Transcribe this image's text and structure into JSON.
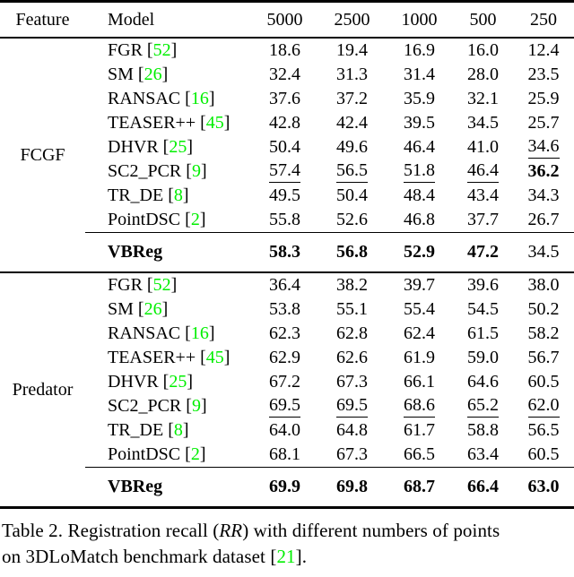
{
  "colors": {
    "citation_green": "#00ef00",
    "text": "#000000",
    "rules": "#000000"
  },
  "table": {
    "columns": [
      "Feature",
      "Model",
      "5000",
      "2500",
      "1000",
      "500",
      "250"
    ],
    "cite_open": "[",
    "cite_close": "]",
    "sections": [
      {
        "feature": "FCGF",
        "rows": [
          {
            "model": "FGR",
            "cite": "52",
            "values": [
              {
                "v": "18.6"
              },
              {
                "v": "19.4"
              },
              {
                "v": "16.9"
              },
              {
                "v": "16.0"
              },
              {
                "v": "12.4"
              }
            ]
          },
          {
            "model": "SM",
            "cite": "26",
            "values": [
              {
                "v": "32.4"
              },
              {
                "v": "31.3"
              },
              {
                "v": "31.4"
              },
              {
                "v": "28.0"
              },
              {
                "v": "23.5"
              }
            ]
          },
          {
            "model": "RANSAC",
            "cite": "16",
            "values": [
              {
                "v": "37.6"
              },
              {
                "v": "37.2"
              },
              {
                "v": "35.9"
              },
              {
                "v": "32.1"
              },
              {
                "v": "25.9"
              }
            ]
          },
          {
            "model": "TEASER++",
            "cite": "45",
            "values": [
              {
                "v": "42.8"
              },
              {
                "v": "42.4"
              },
              {
                "v": "39.5"
              },
              {
                "v": "34.5"
              },
              {
                "v": "25.7"
              }
            ]
          },
          {
            "model": "DHVR",
            "cite": "25",
            "values": [
              {
                "v": "50.4"
              },
              {
                "v": "49.6"
              },
              {
                "v": "46.4"
              },
              {
                "v": "41.0"
              },
              {
                "v": "34.6",
                "underline": true
              }
            ]
          },
          {
            "model": "SC2_PCR",
            "cite": "9",
            "values": [
              {
                "v": "57.4",
                "underline": true
              },
              {
                "v": "56.5",
                "underline": true
              },
              {
                "v": "51.8",
                "underline": true
              },
              {
                "v": "46.4",
                "underline": true
              },
              {
                "v": "36.2",
                "bold": true
              }
            ]
          },
          {
            "model": "TR_DE",
            "cite": "8",
            "values": [
              {
                "v": "49.5"
              },
              {
                "v": "50.4"
              },
              {
                "v": "48.4"
              },
              {
                "v": "43.4"
              },
              {
                "v": "34.3"
              }
            ]
          },
          {
            "model": "PointDSC",
            "cite": "2",
            "values": [
              {
                "v": "55.8"
              },
              {
                "v": "52.6"
              },
              {
                "v": "46.8"
              },
              {
                "v": "37.7"
              },
              {
                "v": "26.7"
              }
            ]
          }
        ],
        "summary": {
          "model": "VBReg",
          "values": [
            {
              "v": "58.3",
              "bold": true
            },
            {
              "v": "56.8",
              "bold": true
            },
            {
              "v": "52.9",
              "bold": true
            },
            {
              "v": "47.2",
              "bold": true
            },
            {
              "v": "34.5"
            }
          ]
        }
      },
      {
        "feature": "Predator",
        "rows": [
          {
            "model": "FGR",
            "cite": "52",
            "values": [
              {
                "v": "36.4"
              },
              {
                "v": "38.2"
              },
              {
                "v": "39.7"
              },
              {
                "v": "39.6"
              },
              {
                "v": "38.0"
              }
            ]
          },
          {
            "model": "SM",
            "cite": "26",
            "values": [
              {
                "v": "53.8"
              },
              {
                "v": "55.1"
              },
              {
                "v": "55.4"
              },
              {
                "v": "54.5"
              },
              {
                "v": "50.2"
              }
            ]
          },
          {
            "model": "RANSAC",
            "cite": "16",
            "values": [
              {
                "v": "62.3"
              },
              {
                "v": "62.8"
              },
              {
                "v": "62.4"
              },
              {
                "v": "61.5"
              },
              {
                "v": "58.2"
              }
            ]
          },
          {
            "model": "TEASER++",
            "cite": "45",
            "values": [
              {
                "v": "62.9"
              },
              {
                "v": "62.6"
              },
              {
                "v": "61.9"
              },
              {
                "v": "59.0"
              },
              {
                "v": "56.7"
              }
            ]
          },
          {
            "model": "DHVR",
            "cite": "25",
            "values": [
              {
                "v": "67.2"
              },
              {
                "v": "67.3"
              },
              {
                "v": "66.1"
              },
              {
                "v": "64.6"
              },
              {
                "v": "60.5"
              }
            ]
          },
          {
            "model": "SC2_PCR",
            "cite": "9",
            "values": [
              {
                "v": "69.5",
                "underline": true
              },
              {
                "v": "69.5",
                "underline": true
              },
              {
                "v": "68.6",
                "underline": true
              },
              {
                "v": "65.2",
                "underline": true
              },
              {
                "v": "62.0",
                "underline": true
              }
            ]
          },
          {
            "model": "TR_DE",
            "cite": "8",
            "values": [
              {
                "v": "64.0"
              },
              {
                "v": "64.8"
              },
              {
                "v": "61.7"
              },
              {
                "v": "58.8"
              },
              {
                "v": "56.5"
              }
            ]
          },
          {
            "model": "PointDSC",
            "cite": "2",
            "values": [
              {
                "v": "68.1"
              },
              {
                "v": "67.3"
              },
              {
                "v": "66.5"
              },
              {
                "v": "63.4"
              },
              {
                "v": "60.5"
              }
            ]
          }
        ],
        "summary": {
          "model": "VBReg",
          "values": [
            {
              "v": "69.9",
              "bold": true
            },
            {
              "v": "69.8",
              "bold": true
            },
            {
              "v": "68.7",
              "bold": true
            },
            {
              "v": "66.4",
              "bold": true
            },
            {
              "v": "63.0",
              "bold": true
            }
          ]
        }
      }
    ]
  },
  "caption": {
    "line1_pre": "Table 2. Registration recall (",
    "line1_italic": "RR",
    "line1_post": ") with different numbers of points",
    "line2_pre": "on 3DLoMatch benchmark dataset [",
    "line2_cite": "21",
    "line2_post": "]."
  }
}
